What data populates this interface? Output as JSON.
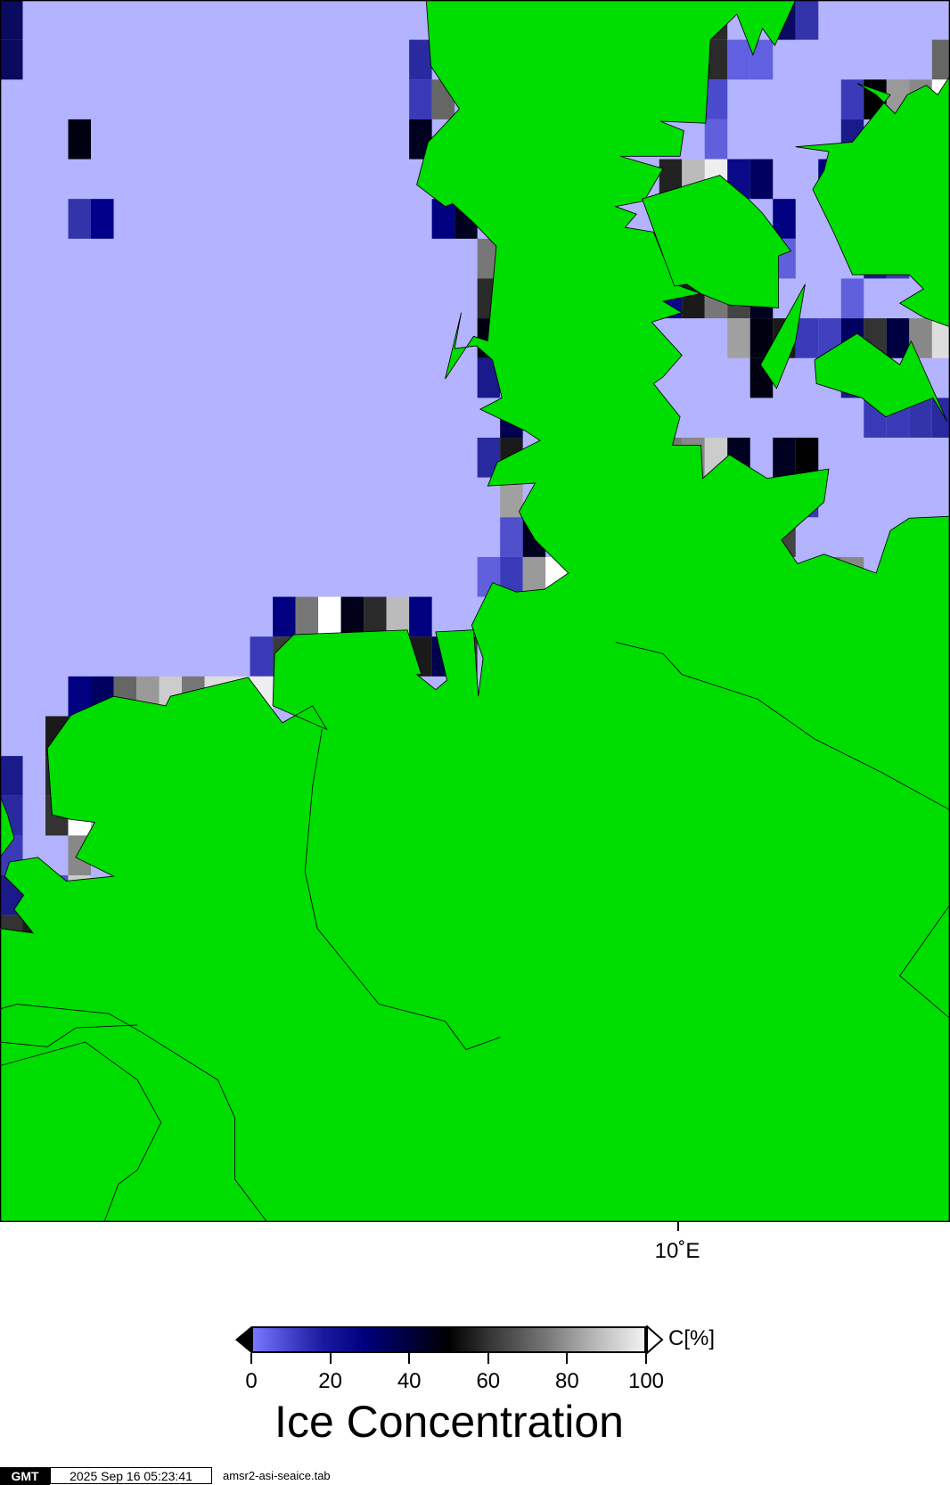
{
  "map": {
    "colors": {
      "ocean": "#b3b3ff",
      "land": "#00dd00",
      "coastline": "#000000"
    },
    "lon_label": "10˚E"
  },
  "colorbar": {
    "unit": "C[%]",
    "ticks": [
      "0",
      "20",
      "40",
      "60",
      "80",
      "100"
    ],
    "range": [
      0,
      100
    ],
    "title": "Ice Concentration",
    "colors": {
      "low": "#7878ff",
      "mid_low": "#000080",
      "mid": "#000000",
      "high": "#f2f2f2"
    }
  },
  "footer": {
    "logo": "GMT",
    "timestamp": "2025 Sep 16 05:23:41",
    "filename": "amsr2-asi-seaice.tab"
  }
}
